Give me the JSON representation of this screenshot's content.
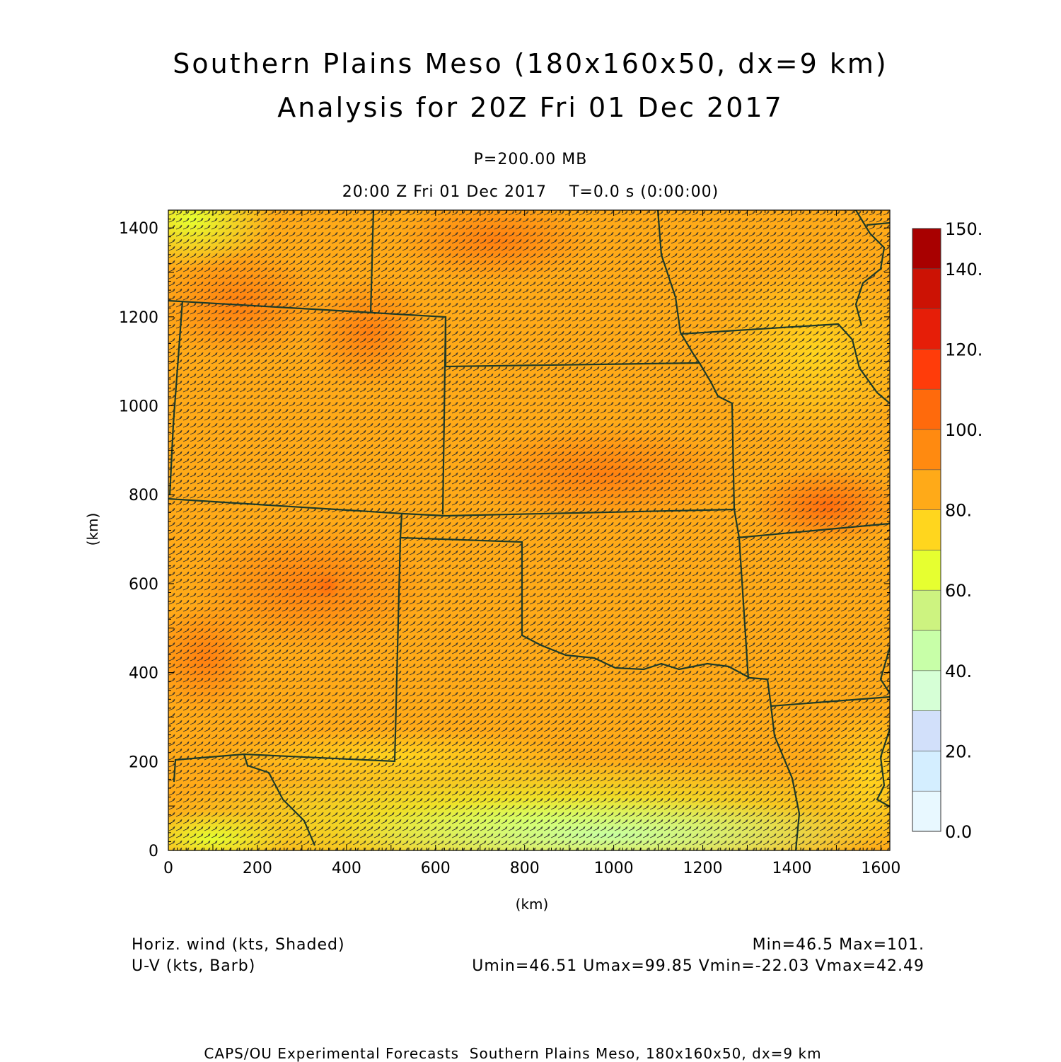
{
  "title_line1": "Southern Plains Meso (180x160x50, dx=9 km)",
  "title_line2": "Analysis for 20Z Fri 01 Dec 2017",
  "level": "P=200.00 MB",
  "time_line": "20:00 Z Fri 01 Dec 2017    T=0.0 s (0:00:00)",
  "x_axis": {
    "label": "(km)",
    "ticks": [
      "0",
      "200",
      "400",
      "600",
      "800",
      "1000",
      "1200",
      "1400",
      "1600"
    ],
    "range": [
      0,
      1620
    ]
  },
  "y_axis": {
    "label": "(km)",
    "ticks": [
      "0",
      "200",
      "400",
      "600",
      "800",
      "1000",
      "1200",
      "1400"
    ],
    "range": [
      0,
      1440
    ]
  },
  "colorbar": {
    "labels": [
      "0.0",
      "20.",
      "40.",
      "60.",
      "80.",
      "100.",
      "120.",
      "140.",
      "150."
    ],
    "colors": [
      "#e8f8ff",
      "#d4eeff",
      "#d2e0fa",
      "#d6ffd6",
      "#c8ffa8",
      "#cdf380",
      "#e6ff30",
      "#ffd61e",
      "#ffaa18",
      "#ff8a10",
      "#ff6a0c",
      "#ff3c0a",
      "#e61e08",
      "#cc1204",
      "#a80000"
    ]
  },
  "footer_left1": "Horiz. wind (kts, Shaded)",
  "footer_left2": "U-V (kts, Barb)",
  "footer_right1": "Min=46.5 Max=101.",
  "footer_right2": "Umin=46.51 Umax=99.85 Vmin=-22.03 Vmax=42.49",
  "credit": "CAPS/OU Experimental Forecasts  Southern Plains Meso, 180x160x50, dx=9 km"
}
